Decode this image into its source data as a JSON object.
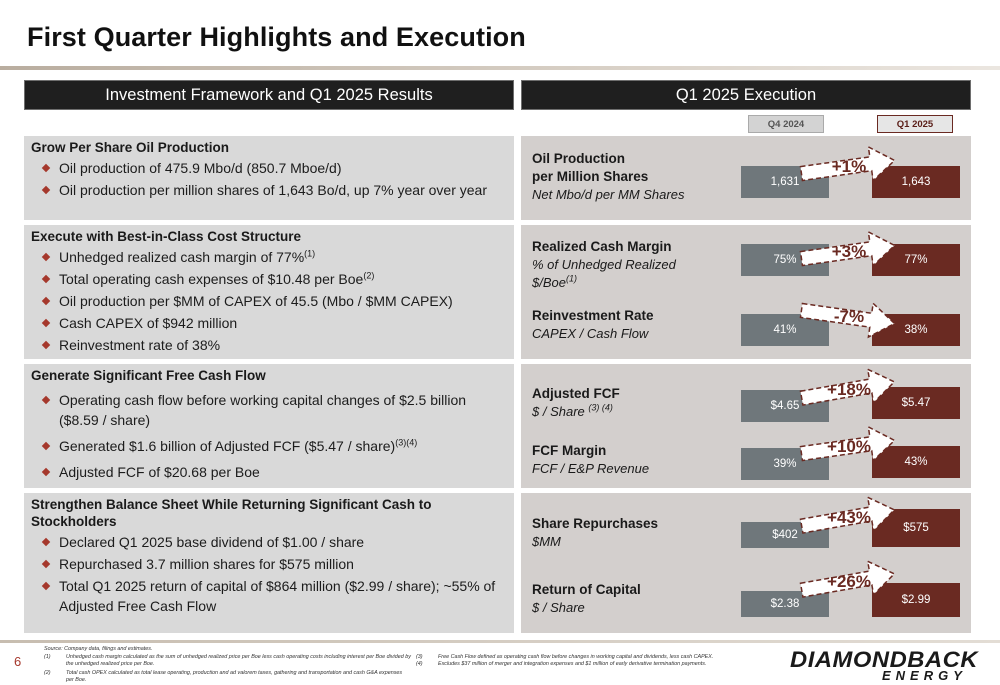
{
  "page": {
    "title": "First Quarter Highlights and Execution",
    "page_number": "6"
  },
  "left_header": "Investment Framework and Q1 2025 Results",
  "right_header": "Q1 2025 Execution",
  "columns": {
    "prior": "Q4 2024",
    "current": "Q1 2025"
  },
  "sections": [
    {
      "title": "Grow Per Share Oil Production",
      "bullets": [
        "Oil production of 475.9 Mbo/d (850.7 Mboe/d)",
        "Oil production per million shares of 1,643 Bo/d, up 7% year over year"
      ]
    },
    {
      "title": "Execute with Best-in-Class Cost Structure",
      "bullets": [
        "Unhedged realized cash margin of 77%",
        "Total operating cash expenses of $10.48 per Boe",
        "Oil production per $MM of CAPEX of 45.5 (Mbo / $MM CAPEX)",
        "Cash CAPEX of $942 million",
        "Reinvestment rate of 38%"
      ],
      "sup": {
        "0": "(1)",
        "1": "(2)"
      }
    },
    {
      "title": "Generate Significant Free Cash Flow",
      "bullets": [
        "Operating cash flow before working capital changes of $2.5 billion ($8.59 / share)",
        "Generated $1.6 billion of Adjusted FCF ($5.47 / share)",
        "Adjusted FCF of $20.68 per Boe"
      ],
      "sup": {
        "1": "(3)(4)"
      }
    },
    {
      "title": "Strengthen Balance Sheet While Returning Significant Cash to Stockholders",
      "bullets": [
        "Declared Q1 2025 base dividend of $1.00 / share",
        "Repurchased 3.7 million shares for $575 million",
        "Total Q1 2025 return of capital of $864 million ($2.99 / share); ~55% of Adjusted Free Cash Flow"
      ]
    }
  ],
  "metrics": [
    {
      "title": "Oil Production per Million Shares",
      "title_l1": "Oil Production",
      "title_l2": "per Million Shares",
      "subtitle": "Net Mbo/d per MM Shares",
      "prior": "1,631",
      "current": "1,643",
      "change": "+1%",
      "direction": "up"
    },
    {
      "title": "Realized Cash Margin",
      "subtitle_l1": "% of Unhedged Realized",
      "subtitle_l2": "$/Boe",
      "subtitle_sup": "(1)",
      "prior": "75%",
      "current": "77%",
      "change": "+3%",
      "direction": "up"
    },
    {
      "title": "Reinvestment Rate",
      "subtitle": "CAPEX / Cash Flow",
      "prior": "41%",
      "current": "38%",
      "change": "-7%",
      "direction": "down"
    },
    {
      "title": "Adjusted FCF",
      "subtitle": "$ / Share",
      "subtitle_sup": "(3) (4)",
      "prior": "$4.65",
      "current": "$5.47",
      "change": "+18%",
      "direction": "up"
    },
    {
      "title": "FCF Margin",
      "subtitle": "FCF / E&P Revenue",
      "prior": "39%",
      "current": "43%",
      "change": "+10%",
      "direction": "up"
    },
    {
      "title": "Share Repurchases",
      "subtitle": "$MM",
      "prior": "$402",
      "current": "$575",
      "change": "+43%",
      "direction": "up"
    },
    {
      "title": "Return of Capital",
      "subtitle": "$ / Share",
      "prior": "$2.38",
      "current": "$2.99",
      "change": "+26%",
      "direction": "up"
    }
  ],
  "footnotes": {
    "source": "Source: Company data, filings and estimates.",
    "n1_num": "(1)",
    "n1": "Unhedged cash margin calculated as the sum of unhedged realized price per Boe less cash operating costs including interest per Boe divided by the unhedged realized price per Boe.",
    "n2_num": "(2)",
    "n2": "Total cash OPEX calculated as total lease operating, production and ad valorem taxes, gathering and transportation and cash G&A expenses per Boe.",
    "n3_num": "(3)",
    "n3": "Free Cash Flow defined as operating cash flow before changes in working capital and dividends, less cash CAPEX.",
    "n4_num": "(4)",
    "n4": "Excludes $37 million of merger and integration expenses and $1 million of early derivative termination payments."
  },
  "logo": {
    "line1": "DIAMONDBACK",
    "line2": "ENERGY"
  },
  "colors": {
    "accent": "#6a2a22",
    "prior_bar": "#6f777b",
    "bullet": "#a5382c",
    "header_bg": "#1f1f1f"
  }
}
